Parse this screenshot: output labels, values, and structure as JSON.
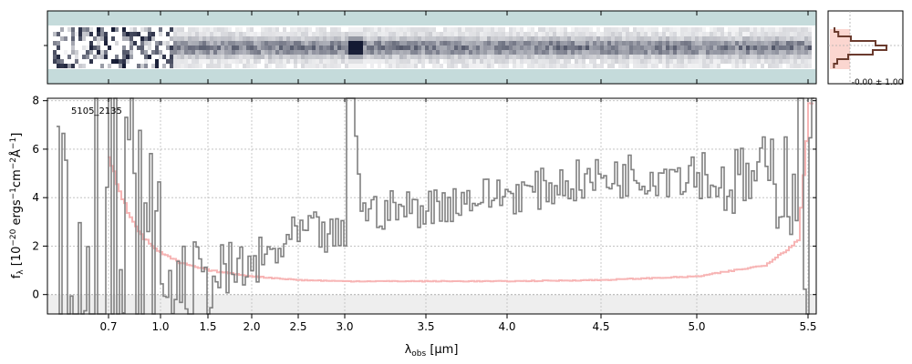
{
  "chart_data": [
    {
      "panel": "2d-spectrum",
      "type": "heatmap",
      "description_free": true,
      "colors": {
        "background": "#c5dbdb",
        "low": "#ffffff",
        "high": "#141a33"
      },
      "rows": 9,
      "trace_profile": [
        0.05,
        0.12,
        0.35,
        0.8,
        1.0,
        0.75,
        0.3,
        0.1,
        0.04
      ],
      "noisy_until_um": 1.1,
      "strong_feature_um": 3.05
    },
    {
      "panel": "profile",
      "type": "line",
      "annotation": "-0.00 ± 1.00",
      "colors": {
        "profile": "#6b3b2e",
        "model": "#f4a0a0"
      }
    },
    {
      "panel": "1d-spectrum",
      "type": "line",
      "label": "5105_2135",
      "xlabel": "λobs [μm]",
      "ylabel_parts": [
        "f",
        "λ",
        " [10",
        "−20",
        " ergs",
        "−1",
        "cm",
        "−2",
        "Å",
        "−1",
        "]"
      ],
      "xticks": [
        "0.7",
        "1.0",
        "1.5",
        "2.0",
        "2.5",
        "3.0",
        "3.5",
        "4.0",
        "4.5",
        "5.0",
        "5.5"
      ],
      "yticks": [
        "0",
        "2",
        "4",
        "6",
        "8"
      ],
      "ylim": [
        -0.8,
        8.1
      ],
      "xlim_um": [
        0.55,
        5.53
      ],
      "grid": true,
      "colors": {
        "flux": "#808080",
        "error": "#f7b5b5",
        "zero_band": "#eeeeee"
      },
      "flux": {
        "x": [
          0.6,
          0.7,
          0.8,
          0.9,
          1.0,
          1.1,
          1.2,
          1.3,
          1.4,
          1.5,
          1.6,
          1.7,
          1.8,
          1.9,
          2.0,
          2.2,
          2.4,
          2.6,
          2.8,
          3.0,
          3.05,
          3.1,
          3.3,
          3.5,
          3.7,
          3.9,
          4.1,
          4.3,
          4.5,
          4.7,
          4.9,
          5.0,
          5.1,
          5.3,
          5.45,
          5.5
        ],
        "y": [
          3.0,
          2.5,
          1.8,
          1.2,
          0.8,
          0.5,
          0.3,
          0.4,
          0.5,
          0.6,
          0.7,
          0.8,
          0.9,
          1.0,
          1.1,
          1.6,
          2.2,
          2.6,
          2.4,
          2.3,
          8.0,
          3.4,
          3.5,
          3.6,
          3.9,
          4.1,
          4.2,
          4.6,
          4.8,
          5.0,
          5.1,
          5.2,
          4.5,
          4.8,
          5.2,
          5.8
        ]
      },
      "error": {
        "x": [
          0.6,
          0.7,
          0.8,
          0.9,
          1.0,
          1.2,
          1.5,
          2.0,
          2.5,
          3.0,
          3.5,
          4.0,
          4.5,
          5.0,
          5.3,
          5.45,
          5.5
        ],
        "y": [
          7.5,
          5.5,
          3.5,
          2.3,
          1.7,
          1.3,
          1.0,
          0.75,
          0.6,
          0.55,
          0.55,
          0.55,
          0.6,
          0.75,
          1.2,
          2.2,
          7.8
        ]
      }
    }
  ]
}
